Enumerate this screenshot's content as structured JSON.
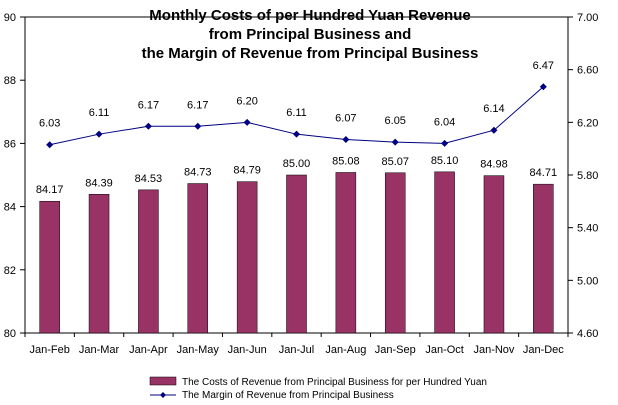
{
  "chart_data": {
    "type": "bar",
    "title_lines": [
      "Monthly Costs of per Hundred Yuan Revenue",
      "from Principal Business and",
      "the Margin of Revenue from Principal Business"
    ],
    "categories": [
      "Jan-Feb",
      "Jan-Mar",
      "Jan-Apr",
      "Jan-May",
      "Jan-Jun",
      "Jan-Jul",
      "Jan-Aug",
      "Jan-Sep",
      "Jan-Oct",
      "Jan-Nov",
      "Jan-Dec"
    ],
    "series": [
      {
        "name": "The Costs of Revenue from Principal Business for per Hundred Yuan",
        "type": "bar",
        "axis": "left",
        "color": "#993366",
        "values": [
          84.17,
          84.39,
          84.53,
          84.73,
          84.79,
          85.0,
          85.08,
          85.07,
          85.1,
          84.98,
          84.71
        ],
        "labels": [
          "84.17",
          "84.39",
          "84.53",
          "84.73",
          "84.79",
          "85.00",
          "85.08",
          "85.07",
          "85.10",
          "84.98",
          "84.71"
        ]
      },
      {
        "name": "The Margin of Revenue from Principal Business",
        "type": "line",
        "axis": "right",
        "color": "#000080",
        "marker": "diamond",
        "values": [
          6.03,
          6.11,
          6.17,
          6.17,
          6.2,
          6.11,
          6.07,
          6.05,
          6.04,
          6.14,
          6.47
        ],
        "labels": [
          "6.03",
          "6.11",
          "6.17",
          "6.17",
          "6.20",
          "6.11",
          "6.07",
          "6.05",
          "6.04",
          "6.14",
          "6.47"
        ]
      }
    ],
    "y_left": {
      "min": 80,
      "max": 90,
      "ticks": [
        "80",
        "82",
        "84",
        "86",
        "88",
        "90"
      ]
    },
    "y_right": {
      "min": 4.6,
      "max": 7.0,
      "ticks": [
        "4.60",
        "5.00",
        "5.40",
        "5.80",
        "6.20",
        "6.60",
        "7.00"
      ]
    },
    "grid": false,
    "legend_position": "bottom"
  }
}
